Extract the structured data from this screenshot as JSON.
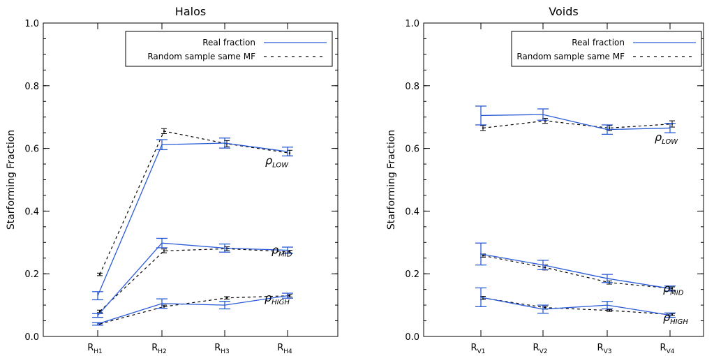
{
  "chart_data": [
    {
      "type": "line",
      "title": "Halos",
      "ylabel": "Starforming Fraction",
      "ylim": [
        0.0,
        1.0
      ],
      "yticks": [
        "0.0",
        "0.2",
        "0.4",
        "0.6",
        "0.8",
        "1.0"
      ],
      "categories": [
        {
          "main": "R",
          "sub": "H1"
        },
        {
          "main": "R",
          "sub": "H2"
        },
        {
          "main": "R",
          "sub": "H3"
        },
        {
          "main": "R",
          "sub": "H4"
        }
      ],
      "legend": {
        "position": "top-right",
        "real": "Real fraction",
        "random": "Random sample same MF"
      },
      "colors": {
        "real": "#2a5bd7",
        "random": "#000000"
      },
      "groups": [
        {
          "label": {
            "main": "ρ",
            "sub": "LOW"
          },
          "real": [
            {
              "y": 0.13,
              "err": 0.013
            },
            {
              "y": 0.612,
              "err": 0.016
            },
            {
              "y": 0.617,
              "err": 0.016
            },
            {
              "y": 0.59,
              "err": 0.014
            }
          ],
          "random": [
            {
              "y": 0.198,
              "err": 0.004
            },
            {
              "y": 0.655,
              "err": 0.008
            },
            {
              "y": 0.615,
              "err": 0.01
            },
            {
              "y": 0.585,
              "err": 0.009
            }
          ]
        },
        {
          "label": {
            "main": "ρ",
            "sub": "MID"
          },
          "real": [
            {
              "y": 0.067,
              "err": 0.006
            },
            {
              "y": 0.298,
              "err": 0.015
            },
            {
              "y": 0.282,
              "err": 0.013
            },
            {
              "y": 0.275,
              "err": 0.01
            }
          ],
          "random": [
            {
              "y": 0.08,
              "err": 0.004
            },
            {
              "y": 0.273,
              "err": 0.006
            },
            {
              "y": 0.28,
              "err": 0.006
            },
            {
              "y": 0.27,
              "err": 0.005
            }
          ]
        },
        {
          "label": {
            "main": "ρ",
            "sub": "HIGH"
          },
          "real": [
            {
              "y": 0.04,
              "err": 0.004
            },
            {
              "y": 0.105,
              "err": 0.015
            },
            {
              "y": 0.1,
              "err": 0.012
            },
            {
              "y": 0.13,
              "err": 0.008
            }
          ],
          "random": [
            {
              "y": 0.04,
              "err": 0.003
            },
            {
              "y": 0.095,
              "err": 0.005
            },
            {
              "y": 0.123,
              "err": 0.004
            },
            {
              "y": 0.13,
              "err": 0.004
            }
          ]
        }
      ]
    },
    {
      "type": "line",
      "title": "Voids",
      "ylabel": "Starforming Fraction",
      "ylim": [
        0.0,
        1.0
      ],
      "yticks": [
        "0.0",
        "0.2",
        "0.4",
        "0.6",
        "0.8",
        "1.0"
      ],
      "categories": [
        {
          "main": "R",
          "sub": "V1"
        },
        {
          "main": "R",
          "sub": "V2"
        },
        {
          "main": "R",
          "sub": "V3"
        },
        {
          "main": "R",
          "sub": "V4"
        }
      ],
      "legend": {
        "position": "top-right",
        "real": "Real fraction",
        "random": "Random sample same MF"
      },
      "colors": {
        "real": "#2a5bd7",
        "random": "#000000"
      },
      "groups": [
        {
          "label": {
            "main": "ρ",
            "sub": "LOW"
          },
          "real": [
            {
              "y": 0.705,
              "err": 0.03
            },
            {
              "y": 0.708,
              "err": 0.018
            },
            {
              "y": 0.66,
              "err": 0.015
            },
            {
              "y": 0.665,
              "err": 0.015
            }
          ],
          "random": [
            {
              "y": 0.665,
              "err": 0.008
            },
            {
              "y": 0.688,
              "err": 0.008
            },
            {
              "y": 0.665,
              "err": 0.008
            },
            {
              "y": 0.678,
              "err": 0.01
            }
          ]
        },
        {
          "label": {
            "main": "ρ",
            "sub": "MID"
          },
          "real": [
            {
              "y": 0.263,
              "err": 0.035
            },
            {
              "y": 0.228,
              "err": 0.015
            },
            {
              "y": 0.185,
              "err": 0.013
            },
            {
              "y": 0.153,
              "err": 0.008
            }
          ],
          "random": [
            {
              "y": 0.258,
              "err": 0.005
            },
            {
              "y": 0.22,
              "err": 0.008
            },
            {
              "y": 0.172,
              "err": 0.005
            },
            {
              "y": 0.153,
              "err": 0.005
            }
          ]
        },
        {
          "label": {
            "main": "ρ",
            "sub": "HIGH"
          },
          "real": [
            {
              "y": 0.125,
              "err": 0.03
            },
            {
              "y": 0.087,
              "err": 0.013
            },
            {
              "y": 0.1,
              "err": 0.012
            },
            {
              "y": 0.068,
              "err": 0.007
            }
          ],
          "random": [
            {
              "y": 0.123,
              "err": 0.005
            },
            {
              "y": 0.092,
              "err": 0.005
            },
            {
              "y": 0.083,
              "err": 0.003
            },
            {
              "y": 0.07,
              "err": 0.003
            }
          ]
        }
      ]
    }
  ]
}
